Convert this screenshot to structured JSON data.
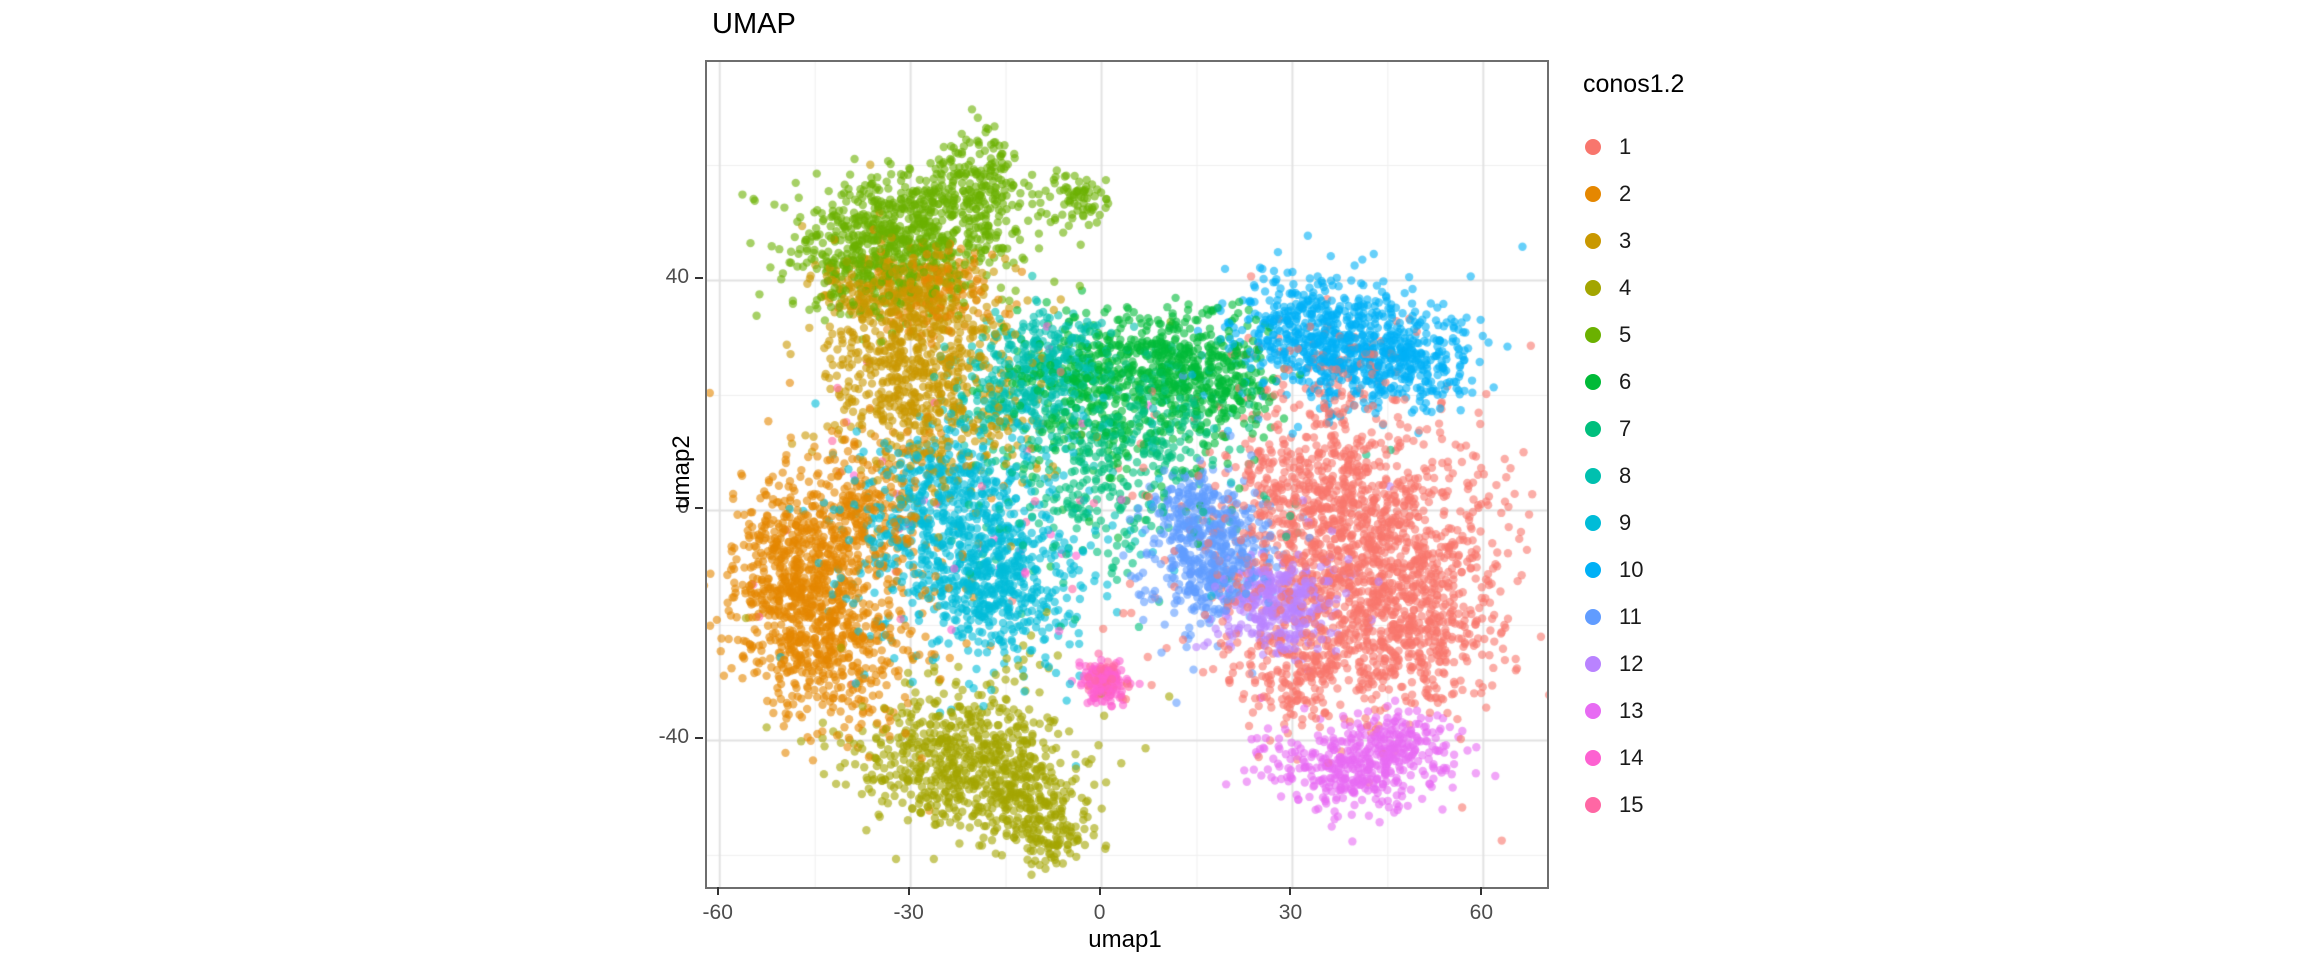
{
  "title": "UMAP",
  "axes": {
    "x_label": "umap1",
    "y_label": "umap2"
  },
  "legend": {
    "title": "conos1.2",
    "entries": [
      {
        "label": "1",
        "color": "#F8766D"
      },
      {
        "label": "2",
        "color": "#E58700"
      },
      {
        "label": "3",
        "color": "#C99800"
      },
      {
        "label": "4",
        "color": "#A3A500"
      },
      {
        "label": "5",
        "color": "#6BB100"
      },
      {
        "label": "6",
        "color": "#00BA38"
      },
      {
        "label": "7",
        "color": "#00BF7D"
      },
      {
        "label": "8",
        "color": "#00C0AF"
      },
      {
        "label": "9",
        "color": "#00BCD8"
      },
      {
        "label": "10",
        "color": "#00B0F6"
      },
      {
        "label": "11",
        "color": "#619CFF"
      },
      {
        "label": "12",
        "color": "#B983FF"
      },
      {
        "label": "13",
        "color": "#E76BF3"
      },
      {
        "label": "14",
        "color": "#FD61D1"
      },
      {
        "label": "15",
        "color": "#FF67A4"
      }
    ]
  },
  "chart_data": {
    "type": "scatter",
    "title": "UMAP",
    "xlabel": "umap1",
    "ylabel": "umap2",
    "xlim": [
      -62,
      70
    ],
    "ylim": [
      -65.5,
      78
    ],
    "x_ticks": [
      -60,
      -30,
      0,
      30,
      60
    ],
    "y_ticks": [
      40,
      0,
      -40
    ],
    "x_minor_ticks": [
      -45,
      -15,
      15,
      45
    ],
    "y_minor_ticks": [
      60,
      20,
      -20,
      -60
    ],
    "grid": true,
    "legend_title": "conos1.2",
    "legend_position": "right",
    "point_alpha": 0.6,
    "point_radius_px": 4.2,
    "major_grid_color": "#e2e2e2",
    "minor_grid_color": "#efefef",
    "series": [
      {
        "name": "1",
        "color": "#F8766D",
        "blobs": [
          [
            42,
            -8,
            11,
            12,
            900
          ],
          [
            48,
            -20,
            7,
            8,
            450
          ],
          [
            34,
            4,
            7,
            7,
            300
          ],
          [
            30,
            -28,
            5,
            5,
            180
          ],
          [
            38,
            24,
            7,
            4,
            80
          ],
          [
            32,
            -5,
            17,
            16,
            150
          ]
        ]
      },
      {
        "name": "2",
        "color": "#E58700",
        "blobs": [
          [
            -48,
            -12,
            5.5,
            9,
            650
          ],
          [
            -42,
            -25,
            6,
            7,
            320
          ],
          [
            -38,
            -2,
            5,
            7,
            230
          ],
          [
            -26,
            38,
            5,
            4,
            140
          ],
          [
            -36,
            -8,
            11,
            13,
            120
          ]
        ]
      },
      {
        "name": "3",
        "color": "#C99800",
        "blobs": [
          [
            -29,
            26,
            7,
            9,
            650
          ],
          [
            -33,
            38,
            6,
            4,
            220
          ],
          [
            -24,
            15,
            9,
            8,
            120
          ]
        ]
      },
      {
        "name": "4",
        "color": "#A3A500",
        "blobs": [
          [
            -22,
            -44,
            8,
            6,
            550
          ],
          [
            -12,
            -51,
            5,
            4,
            180
          ],
          [
            -8,
            -57,
            3,
            3,
            80
          ],
          [
            -20,
            -37,
            11,
            7,
            100
          ]
        ]
      },
      {
        "name": "5",
        "color": "#6BB100",
        "blobs": [
          [
            -31,
            48,
            8,
            5,
            550
          ],
          [
            -20,
            57,
            4,
            5,
            190
          ],
          [
            -38,
            41,
            5,
            4,
            140
          ],
          [
            -4,
            54,
            2.5,
            2.5,
            70
          ],
          [
            -27,
            46,
            12,
            7,
            110
          ]
        ]
      },
      {
        "name": "6",
        "color": "#00BA38",
        "blobs": [
          [
            17,
            24,
            5,
            5,
            320
          ],
          [
            -3,
            22,
            6,
            5,
            230
          ],
          [
            7,
            28,
            6,
            4,
            180
          ],
          [
            5,
            14,
            11,
            9,
            110
          ]
        ]
      },
      {
        "name": "7",
        "color": "#00BF7D",
        "blobs": [
          [
            0,
            8,
            8,
            8,
            220
          ],
          [
            10,
            17,
            6,
            5,
            130
          ],
          [
            0,
            2,
            14,
            11,
            90
          ]
        ]
      },
      {
        "name": "8",
        "color": "#00C0AF",
        "blobs": [
          [
            -8,
            27,
            5,
            4,
            230
          ],
          [
            -14,
            20,
            5,
            4,
            140
          ],
          [
            -5,
            14,
            9,
            8,
            70
          ]
        ]
      },
      {
        "name": "9",
        "color": "#00BCD8",
        "blobs": [
          [
            -22,
            -6,
            8,
            8,
            520
          ],
          [
            -15,
            -15,
            6,
            6,
            230
          ],
          [
            -25,
            4,
            6,
            5,
            180
          ],
          [
            -18,
            -6,
            13,
            12,
            140
          ]
        ]
      },
      {
        "name": "10",
        "color": "#00B0F6",
        "blobs": [
          [
            39,
            29,
            8,
            5,
            520
          ],
          [
            48,
            25,
            5,
            4,
            180
          ],
          [
            30,
            33,
            5,
            4,
            140
          ],
          [
            38,
            28,
            11,
            7,
            70
          ]
        ]
      },
      {
        "name": "11",
        "color": "#619CFF",
        "blobs": [
          [
            17,
            -8,
            4.5,
            6,
            430
          ],
          [
            14,
            1,
            3,
            3,
            90
          ],
          [
            18,
            -8,
            7,
            9,
            50
          ]
        ]
      },
      {
        "name": "12",
        "color": "#B983FF",
        "blobs": [
          [
            28,
            -16,
            4.5,
            4,
            330
          ],
          [
            28,
            -14,
            7,
            6,
            50
          ]
        ]
      },
      {
        "name": "13",
        "color": "#E76BF3",
        "blobs": [
          [
            40,
            -45,
            7,
            3.5,
            330
          ],
          [
            47,
            -40,
            4,
            3,
            110
          ],
          [
            40,
            -44,
            10,
            5,
            50
          ]
        ]
      },
      {
        "name": "14",
        "color": "#FD61D1",
        "blobs": [
          [
            0.5,
            -30,
            1.8,
            1.8,
            140
          ],
          [
            -15,
            -2,
            18,
            14,
            20
          ]
        ]
      },
      {
        "name": "15",
        "color": "#FF67A4",
        "blobs": [
          [
            1,
            -29,
            1.5,
            1.5,
            55
          ],
          [
            -28,
            4,
            14,
            13,
            25
          ]
        ]
      }
    ]
  }
}
